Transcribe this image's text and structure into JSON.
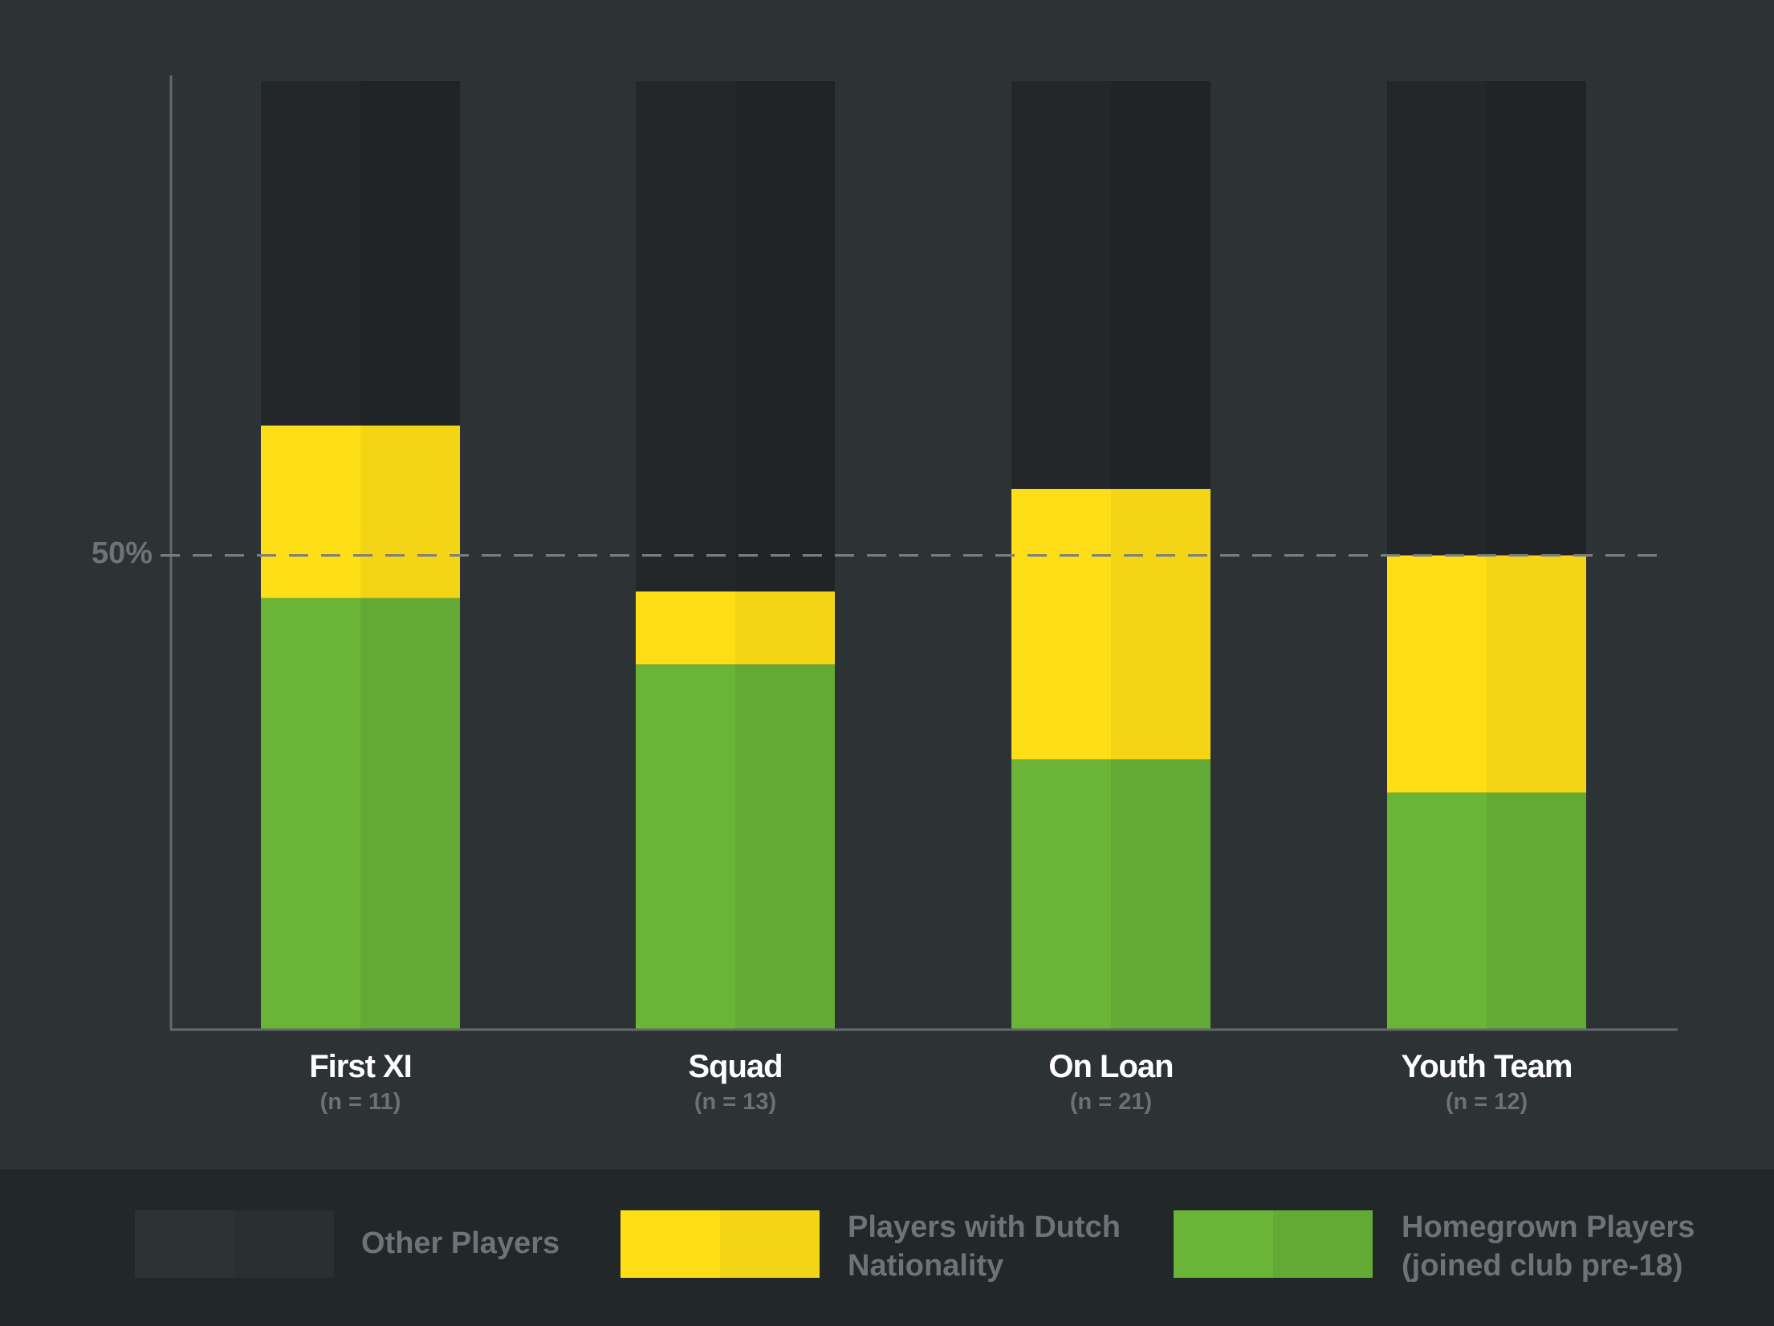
{
  "chart_data": {
    "type": "bar",
    "stacked": true,
    "categories": [
      "First XI",
      "Squad",
      "On Loan",
      "Youth Team"
    ],
    "category_notes": [
      "(n = 11)",
      "(n = 13)",
      "(n = 21)",
      "(n = 12)"
    ],
    "series": [
      {
        "name": "Homegrown Players (joined club pre-18)",
        "values": [
          45.5,
          38.5,
          28.5,
          25.0
        ],
        "color": "#6ab437",
        "shade": "#63aa35"
      },
      {
        "name": "Players with Dutch Nationality",
        "values": [
          18.2,
          7.7,
          28.5,
          25.0
        ],
        "color": "#fedf17",
        "shade": "#f4d516"
      },
      {
        "name": "Other Players",
        "values": [
          36.3,
          53.8,
          43.0,
          50.0
        ],
        "color": "#23272a",
        "shade": "#202427"
      }
    ],
    "ylim": [
      0,
      100
    ],
    "reference_line": {
      "value": 50,
      "label": "50%"
    },
    "legend_position": "bottom",
    "title": "",
    "xlabel": "",
    "ylabel": ""
  },
  "legend": {
    "items": [
      {
        "lines": [
          "Other Players"
        ],
        "color": "#2d3235",
        "shade": "#2a2f32"
      },
      {
        "lines": [
          "Players with Dutch",
          "Nationality"
        ],
        "color": "#fedf17",
        "shade": "#f4d516"
      },
      {
        "lines": [
          "Homegrown Players",
          "(joined club pre-18)"
        ],
        "color": "#6ab437",
        "shade": "#63aa35"
      }
    ]
  },
  "colors": {
    "background": "#2d3235",
    "legend_background": "#22272a",
    "axis": "#65696c",
    "reference_line": "#7b7f82"
  }
}
